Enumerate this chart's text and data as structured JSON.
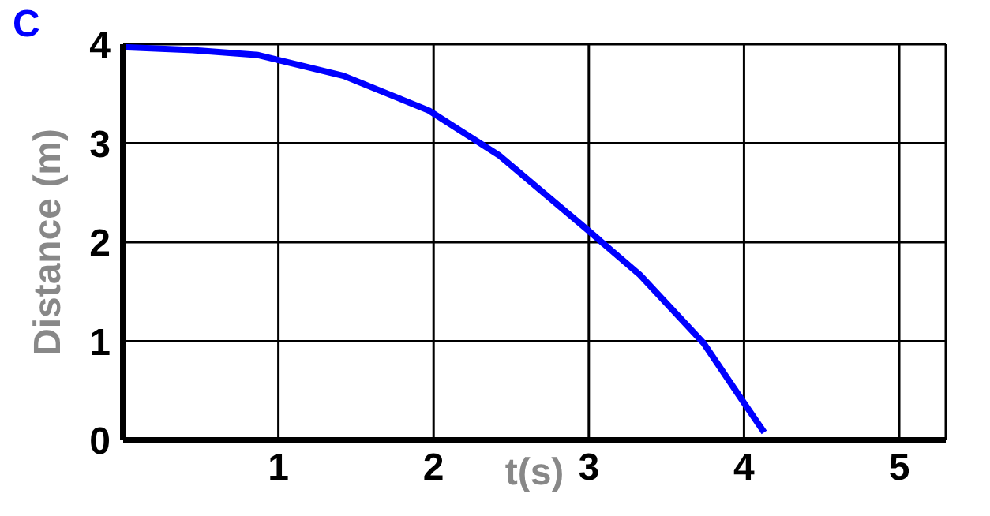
{
  "chart_data": {
    "type": "line",
    "xlabel": "t(s)",
    "ylabel": "Distance (m)",
    "annotations": [
      "C"
    ],
    "x": [
      0,
      0.45,
      0.87,
      1.42,
      1.97,
      2.42,
      2.98,
      3.33,
      3.74,
      3.99,
      4.13
    ],
    "series": [
      {
        "color": "#0000ff",
        "values": [
          3.97,
          3.94,
          3.89,
          3.68,
          3.33,
          2.88,
          2.14,
          1.67,
          0.98,
          0.4,
          0.08
        ]
      }
    ],
    "xlim": [
      0,
      5.3
    ],
    "xticks": [
      {
        "value": 0,
        "label": null
      },
      1,
      2,
      3,
      4,
      5
    ],
    "ylim": [
      0,
      4
    ],
    "yticks": [
      0,
      1,
      2,
      3,
      4
    ],
    "grid": true,
    "marker": "none",
    "line_style": "solid",
    "legend": false
  }
}
